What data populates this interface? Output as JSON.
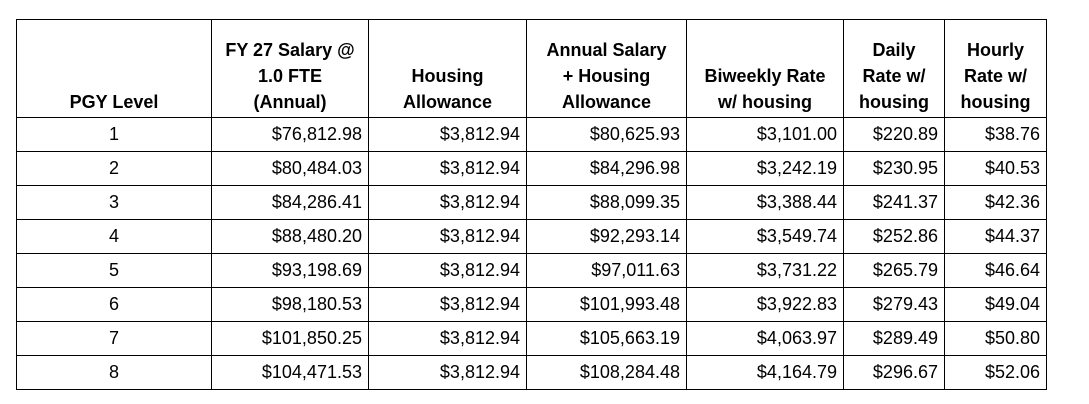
{
  "columns": [
    {
      "label": "PGY Level"
    },
    {
      "label": "FY 27 Salary @\n1.0 FTE\n(Annual)"
    },
    {
      "label": "Housing\nAllowance"
    },
    {
      "label": "Annual Salary\n+ Housing\nAllowance"
    },
    {
      "label": "Biweekly Rate\nw/ housing"
    },
    {
      "label": "Daily\nRate w/\nhousing"
    },
    {
      "label": "Hourly\nRate w/\nhousing"
    }
  ],
  "rows": [
    [
      "1",
      "$76,812.98",
      "$3,812.94",
      "$80,625.93",
      "$3,101.00",
      "$220.89",
      "$38.76"
    ],
    [
      "2",
      "$80,484.03",
      "$3,812.94",
      "$84,296.98",
      "$3,242.19",
      "$230.95",
      "$40.53"
    ],
    [
      "3",
      "$84,286.41",
      "$3,812.94",
      "$88,099.35",
      "$3,388.44",
      "$241.37",
      "$42.36"
    ],
    [
      "4",
      "$88,480.20",
      "$3,812.94",
      "$92,293.14",
      "$3,549.74",
      "$252.86",
      "$44.37"
    ],
    [
      "5",
      "$93,198.69",
      "$3,812.94",
      "$97,011.63",
      "$3,731.22",
      "$265.79",
      "$46.64"
    ],
    [
      "6",
      "$98,180.53",
      "$3,812.94",
      "$101,993.48",
      "$3,922.83",
      "$279.43",
      "$49.04"
    ],
    [
      "7",
      "$101,850.25",
      "$3,812.94",
      "$105,663.19",
      "$4,063.97",
      "$289.49",
      "$50.80"
    ],
    [
      "8",
      "$104,471.53",
      "$3,812.94",
      "$108,284.48",
      "$4,164.79",
      "$296.67",
      "$52.06"
    ]
  ]
}
